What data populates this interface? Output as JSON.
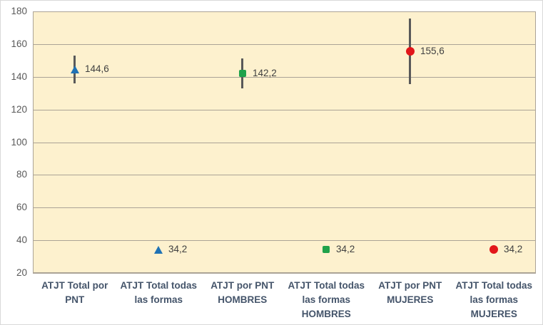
{
  "chart_data": {
    "type": "scatter",
    "title": "",
    "xlabel": "",
    "ylabel": "",
    "grid": true,
    "legend": "none",
    "ylim": [
      20,
      180
    ],
    "yticks": [
      20,
      40,
      60,
      80,
      100,
      120,
      140,
      160,
      180
    ],
    "categories": [
      "ATJT Total por PNT",
      "ATJT Total todas las formas",
      "ATJT por PNT HOMBRES",
      "ATJT Total todas las formas HOMBRES",
      "ATJT por PNT MUJERES",
      "ATJT Total todas las formas MUJERES"
    ],
    "points": [
      {
        "category_index": 0,
        "value": 144.6,
        "label": "144,6",
        "marker": "triangle",
        "color": "#1F72B5",
        "error_low": 136.1,
        "error_high": 153.1
      },
      {
        "category_index": 1,
        "value": 34.2,
        "label": "34,2",
        "marker": "triangle",
        "color": "#1F72B5",
        "error_low": null,
        "error_high": null
      },
      {
        "category_index": 2,
        "value": 142.2,
        "label": "142,2",
        "marker": "square",
        "color": "#1FA24B",
        "error_low": 133.1,
        "error_high": 151.3
      },
      {
        "category_index": 3,
        "value": 34.2,
        "label": "34,2",
        "marker": "square",
        "color": "#1FA24B",
        "error_low": null,
        "error_high": null
      },
      {
        "category_index": 4,
        "value": 155.6,
        "label": "155,6",
        "marker": "circle",
        "color": "#E2161A",
        "error_low": 135.6,
        "error_high": 175.6
      },
      {
        "category_index": 5,
        "value": 34.2,
        "label": "34,2",
        "marker": "circle",
        "color": "#E2161A",
        "error_low": null,
        "error_high": null
      }
    ],
    "colors": {
      "chart_background": "#FFFFFF",
      "chart_border": "#D9D9D9",
      "plot_background": "#FDF1CE",
      "gridline": "#ABA396",
      "error_bar": "#595959",
      "tick_label": "#595959",
      "data_label": "#404040",
      "category_label": "#44546A"
    }
  }
}
